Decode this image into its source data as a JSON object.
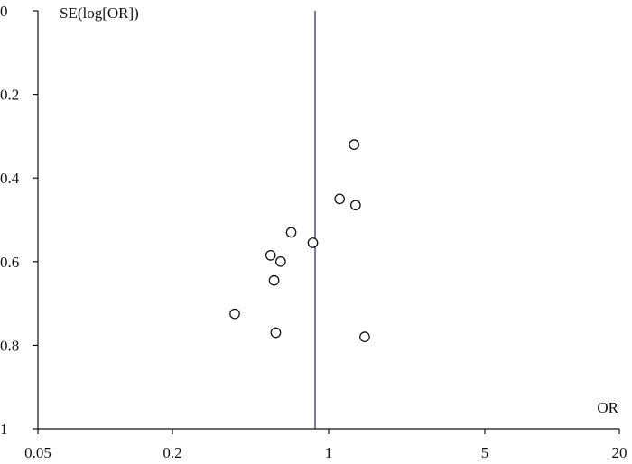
{
  "chart_data": {
    "type": "scatter",
    "title": "",
    "xlabel": "OR",
    "ylabel": "SE(log[OR])",
    "x_scale": "log",
    "y_reversed": true,
    "xlim": [
      0.05,
      20
    ],
    "ylim": [
      0,
      1
    ],
    "x_ticks": [
      {
        "value": 0.05,
        "label": "0.05"
      },
      {
        "value": 0.2,
        "label": "0.2"
      },
      {
        "value": 1,
        "label": "1"
      },
      {
        "value": 5,
        "label": "5"
      },
      {
        "value": 20,
        "label": "20"
      }
    ],
    "y_ticks": [
      {
        "value": 0,
        "label": "0"
      },
      {
        "value": 0.2,
        "label": "0.2"
      },
      {
        "value": 0.4,
        "label": "0.4"
      },
      {
        "value": 0.6,
        "label": "0.6"
      },
      {
        "value": 0.8,
        "label": "0.8"
      },
      {
        "value": 1,
        "label": "1"
      }
    ],
    "reference_line": {
      "x": 0.87,
      "color": "#2b1a66"
    },
    "marker": "hollow-circle",
    "grid": false,
    "points": [
      {
        "x": 1.3,
        "y": 0.32
      },
      {
        "x": 1.12,
        "y": 0.45
      },
      {
        "x": 1.32,
        "y": 0.465
      },
      {
        "x": 0.68,
        "y": 0.53
      },
      {
        "x": 0.85,
        "y": 0.555
      },
      {
        "x": 0.55,
        "y": 0.585
      },
      {
        "x": 0.61,
        "y": 0.6
      },
      {
        "x": 0.57,
        "y": 0.645
      },
      {
        "x": 0.38,
        "y": 0.725
      },
      {
        "x": 0.58,
        "y": 0.77
      },
      {
        "x": 1.45,
        "y": 0.78
      }
    ]
  }
}
